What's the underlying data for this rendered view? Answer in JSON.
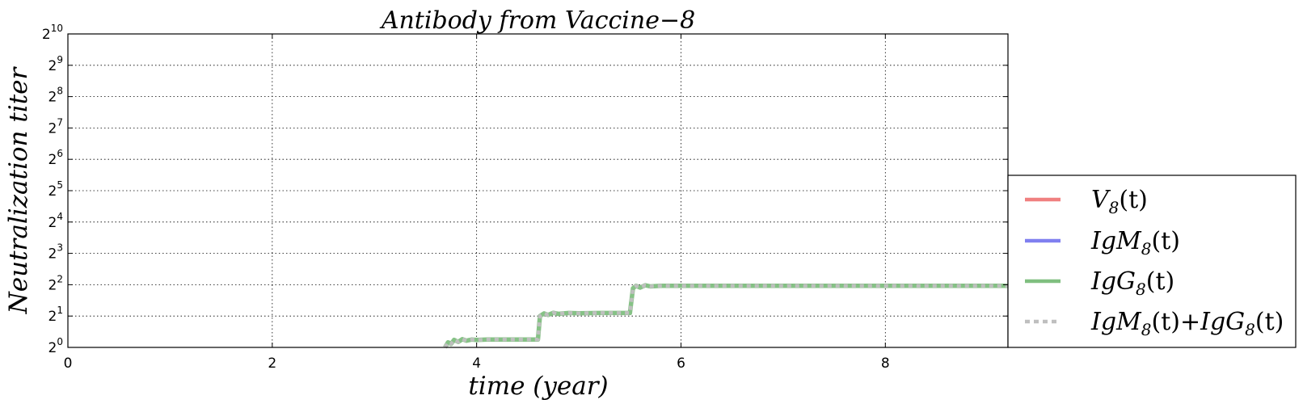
{
  "chart_data": {
    "type": "line",
    "title": "Antibody from Vaccine−8",
    "xlabel": "time (year)",
    "ylabel": "Neutralization  titer",
    "xlim": [
      0,
      9.2
    ],
    "x_ticks": [
      0,
      2,
      4,
      6,
      8
    ],
    "x_tick_labels": [
      "0",
      "2",
      "4",
      "6",
      "8"
    ],
    "y_scale": "log2",
    "ylim": [
      1,
      1024
    ],
    "y_ticks": [
      {
        "base": "2",
        "exp": "0"
      },
      {
        "base": "2",
        "exp": "1"
      },
      {
        "base": "2",
        "exp": "2"
      },
      {
        "base": "2",
        "exp": "3"
      },
      {
        "base": "2",
        "exp": "4"
      },
      {
        "base": "2",
        "exp": "5"
      },
      {
        "base": "2",
        "exp": "6"
      },
      {
        "base": "2",
        "exp": "7"
      },
      {
        "base": "2",
        "exp": "8"
      },
      {
        "base": "2",
        "exp": "9"
      },
      {
        "base": "2",
        "exp": "10"
      }
    ],
    "grid": true,
    "legend_position": "lower-right, outside plot area",
    "series": [
      {
        "name": "V8(t)",
        "legend_base": "V",
        "legend_sub": "8",
        "legend_suffix": "(t)",
        "color": "#f08080",
        "style": "solid",
        "x": [],
        "y": []
      },
      {
        "name": "IgM8(t)",
        "legend_base": "IgM",
        "legend_sub": "8",
        "legend_suffix": "(t)",
        "color": "#8080f0",
        "style": "solid",
        "x": [],
        "y": []
      },
      {
        "name": "IgG8(t)",
        "legend_base": "IgG",
        "legend_sub": "8",
        "legend_suffix": "(t)",
        "color": "#80bf80",
        "style": "solid",
        "x": [
          3.69,
          3.72,
          3.75,
          3.78,
          3.82,
          3.86,
          3.9,
          3.95,
          4.0,
          4.1,
          4.3,
          4.6,
          4.62,
          4.66,
          4.7,
          4.75,
          4.8,
          4.9,
          5.0,
          5.2,
          5.5,
          5.53,
          5.56,
          5.6,
          5.65,
          5.7,
          5.8,
          6.0,
          7.0,
          8.0,
          9.2
        ],
        "y": [
          1.0,
          1.12,
          1.08,
          1.18,
          1.13,
          1.2,
          1.16,
          1.19,
          1.18,
          1.19,
          1.19,
          1.19,
          2.0,
          2.12,
          2.05,
          2.15,
          2.1,
          2.14,
          2.13,
          2.14,
          2.14,
          3.7,
          3.9,
          3.75,
          3.95,
          3.85,
          3.9,
          3.9,
          3.9,
          3.9,
          3.9
        ]
      },
      {
        "name": "IgM8(t)+IgG8(t)",
        "legend_base": "IgM",
        "legend_sub": "8",
        "legend_suffix": "(t)+",
        "legend_base2": "IgG",
        "legend_sub2": "8",
        "legend_suffix2": "(t)",
        "color": "#bfbfbf",
        "style": "dotted",
        "x": [
          3.69,
          3.72,
          3.75,
          3.78,
          3.82,
          3.86,
          3.9,
          3.95,
          4.0,
          4.1,
          4.3,
          4.6,
          4.62,
          4.66,
          4.7,
          4.75,
          4.8,
          4.9,
          5.0,
          5.2,
          5.5,
          5.53,
          5.56,
          5.6,
          5.65,
          5.7,
          5.8,
          6.0,
          7.0,
          8.0,
          9.2
        ],
        "y": [
          1.0,
          1.12,
          1.08,
          1.18,
          1.13,
          1.2,
          1.16,
          1.19,
          1.18,
          1.19,
          1.19,
          1.19,
          2.0,
          2.12,
          2.05,
          2.15,
          2.1,
          2.14,
          2.13,
          2.14,
          2.14,
          3.7,
          3.9,
          3.75,
          3.95,
          3.85,
          3.9,
          3.9,
          3.9,
          3.9,
          3.9
        ]
      }
    ]
  }
}
